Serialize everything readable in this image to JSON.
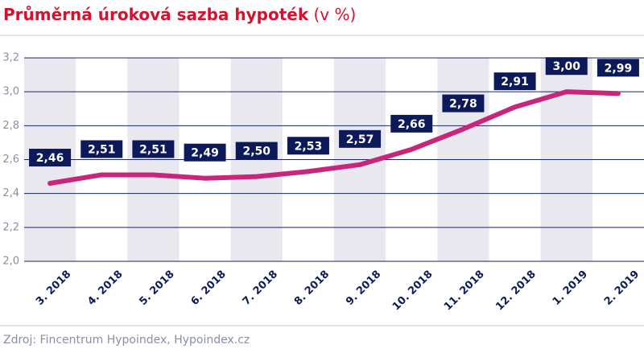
{
  "chart_data": {
    "type": "line",
    "title": "Průměrná úroková sazba hypoték",
    "title_unit": "(v %)",
    "source": "Zdroj: Fincentrum Hypoindex, Hypoindex.cz",
    "categories": [
      "3. 2018",
      "4. 2018",
      "5. 2018",
      "6. 2018",
      "7. 2018",
      "8. 2018",
      "9. 2018",
      "10. 2018",
      "11. 2018",
      "12. 2018",
      "1. 2019",
      "2. 2019"
    ],
    "values": [
      2.46,
      2.51,
      2.51,
      2.49,
      2.5,
      2.53,
      2.57,
      2.66,
      2.78,
      2.91,
      3.0,
      2.99
    ],
    "value_labels": [
      "2,46",
      "2,51",
      "2,51",
      "2,49",
      "2,50",
      "2,53",
      "2,57",
      "2,66",
      "2,78",
      "2,91",
      "3,00",
      "2,99"
    ],
    "color": "#c8267a",
    "label_color": "#0c1a5a",
    "ylim": [
      2.0,
      3.2
    ],
    "yticks": [
      {
        "value": 2.0,
        "label": "2,0"
      },
      {
        "value": 2.2,
        "label": "2,2"
      },
      {
        "value": 2.4,
        "label": "2,4"
      },
      {
        "value": 2.6,
        "label": "2,6"
      },
      {
        "value": 2.8,
        "label": "2,8"
      },
      {
        "value": 3.0,
        "label": "3,0"
      },
      {
        "value": 3.2,
        "label": "3,2"
      }
    ],
    "grid": true
  }
}
